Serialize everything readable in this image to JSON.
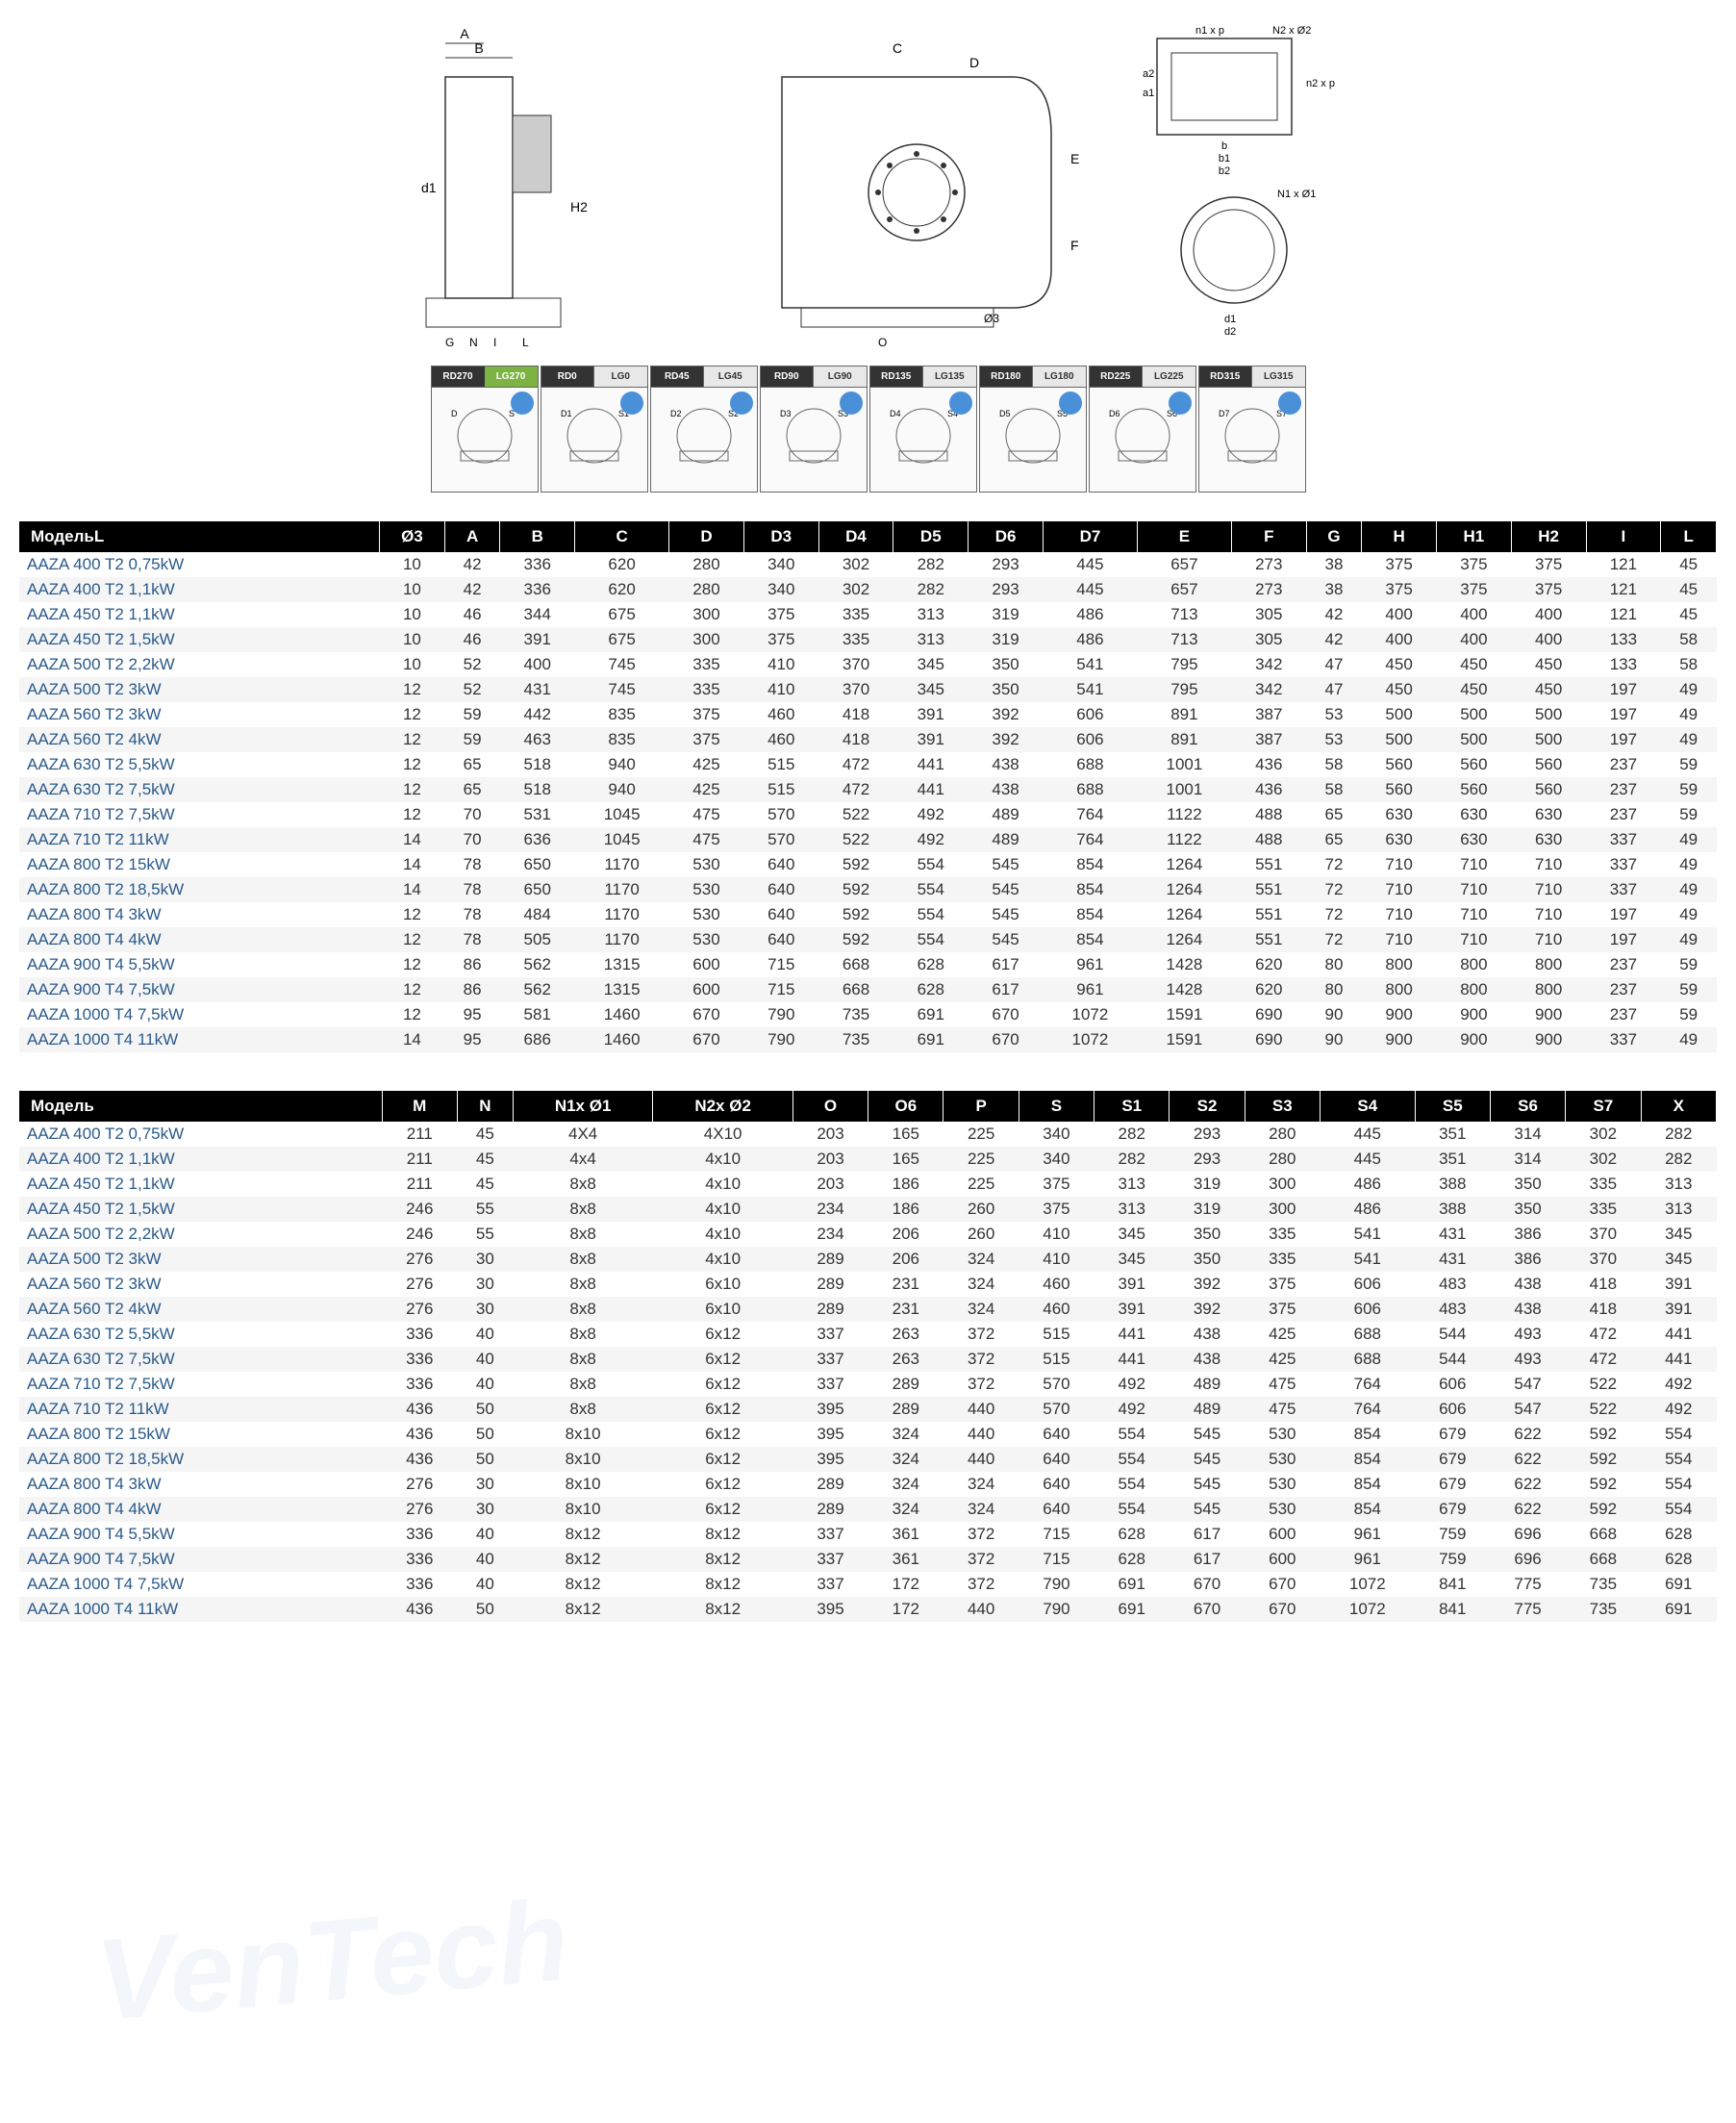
{
  "orientations": [
    {
      "rd": "RD270",
      "lg": "LG270",
      "highlight": true
    },
    {
      "rd": "RD0",
      "lg": "LG0"
    },
    {
      "rd": "RD45",
      "lg": "LG45"
    },
    {
      "rd": "RD90",
      "lg": "LG90"
    },
    {
      "rd": "RD135",
      "lg": "LG135"
    },
    {
      "rd": "RD180",
      "lg": "LG180"
    },
    {
      "rd": "RD225",
      "lg": "LG225"
    },
    {
      "rd": "RD315",
      "lg": "LG315"
    }
  ],
  "table1": {
    "headers": [
      "МодельL",
      "Ø3",
      "A",
      "B",
      "C",
      "D",
      "D3",
      "D4",
      "D5",
      "D6",
      "D7",
      "E",
      "F",
      "G",
      "H",
      "H1",
      "H2",
      "I",
      "L"
    ],
    "rows": [
      [
        "AAZA 400 T2 0,75kW",
        "10",
        "42",
        "336",
        "620",
        "280",
        "340",
        "302",
        "282",
        "293",
        "445",
        "657",
        "273",
        "38",
        "375",
        "375",
        "375",
        "121",
        "45"
      ],
      [
        "AAZA 400 T2 1,1kW",
        "10",
        "42",
        "336",
        "620",
        "280",
        "340",
        "302",
        "282",
        "293",
        "445",
        "657",
        "273",
        "38",
        "375",
        "375",
        "375",
        "121",
        "45"
      ],
      [
        "AAZA 450 T2 1,1kW",
        "10",
        "46",
        "344",
        "675",
        "300",
        "375",
        "335",
        "313",
        "319",
        "486",
        "713",
        "305",
        "42",
        "400",
        "400",
        "400",
        "121",
        "45"
      ],
      [
        "AAZA 450 T2 1,5kW",
        "10",
        "46",
        "391",
        "675",
        "300",
        "375",
        "335",
        "313",
        "319",
        "486",
        "713",
        "305",
        "42",
        "400",
        "400",
        "400",
        "133",
        "58"
      ],
      [
        "AAZA 500 T2 2,2kW",
        "10",
        "52",
        "400",
        "745",
        "335",
        "410",
        "370",
        "345",
        "350",
        "541",
        "795",
        "342",
        "47",
        "450",
        "450",
        "450",
        "133",
        "58"
      ],
      [
        "AAZA 500 T2 3kW",
        "12",
        "52",
        "431",
        "745",
        "335",
        "410",
        "370",
        "345",
        "350",
        "541",
        "795",
        "342",
        "47",
        "450",
        "450",
        "450",
        "197",
        "49"
      ],
      [
        "AAZA 560 T2 3kW",
        "12",
        "59",
        "442",
        "835",
        "375",
        "460",
        "418",
        "391",
        "392",
        "606",
        "891",
        "387",
        "53",
        "500",
        "500",
        "500",
        "197",
        "49"
      ],
      [
        "AAZA 560 T2 4kW",
        "12",
        "59",
        "463",
        "835",
        "375",
        "460",
        "418",
        "391",
        "392",
        "606",
        "891",
        "387",
        "53",
        "500",
        "500",
        "500",
        "197",
        "49"
      ],
      [
        "AAZA 630 T2 5,5kW",
        "12",
        "65",
        "518",
        "940",
        "425",
        "515",
        "472",
        "441",
        "438",
        "688",
        "1001",
        "436",
        "58",
        "560",
        "560",
        "560",
        "237",
        "59"
      ],
      [
        "AAZA 630 T2 7,5kW",
        "12",
        "65",
        "518",
        "940",
        "425",
        "515",
        "472",
        "441",
        "438",
        "688",
        "1001",
        "436",
        "58",
        "560",
        "560",
        "560",
        "237",
        "59"
      ],
      [
        "AAZA 710 T2 7,5kW",
        "12",
        "70",
        "531",
        "1045",
        "475",
        "570",
        "522",
        "492",
        "489",
        "764",
        "1122",
        "488",
        "65",
        "630",
        "630",
        "630",
        "237",
        "59"
      ],
      [
        "AAZA 710 T2 11kW",
        "14",
        "70",
        "636",
        "1045",
        "475",
        "570",
        "522",
        "492",
        "489",
        "764",
        "1122",
        "488",
        "65",
        "630",
        "630",
        "630",
        "337",
        "49"
      ],
      [
        "AAZA 800 T2 15kW",
        "14",
        "78",
        "650",
        "1170",
        "530",
        "640",
        "592",
        "554",
        "545",
        "854",
        "1264",
        "551",
        "72",
        "710",
        "710",
        "710",
        "337",
        "49"
      ],
      [
        "AAZA 800 T2 18,5kW",
        "14",
        "78",
        "650",
        "1170",
        "530",
        "640",
        "592",
        "554",
        "545",
        "854",
        "1264",
        "551",
        "72",
        "710",
        "710",
        "710",
        "337",
        "49"
      ],
      [
        "AAZA 800 T4 3kW",
        "12",
        "78",
        "484",
        "1170",
        "530",
        "640",
        "592",
        "554",
        "545",
        "854",
        "1264",
        "551",
        "72",
        "710",
        "710",
        "710",
        "197",
        "49"
      ],
      [
        "AAZA 800 T4 4kW",
        "12",
        "78",
        "505",
        "1170",
        "530",
        "640",
        "592",
        "554",
        "545",
        "854",
        "1264",
        "551",
        "72",
        "710",
        "710",
        "710",
        "197",
        "49"
      ],
      [
        "AAZA 900 T4 5,5kW",
        "12",
        "86",
        "562",
        "1315",
        "600",
        "715",
        "668",
        "628",
        "617",
        "961",
        "1428",
        "620",
        "80",
        "800",
        "800",
        "800",
        "237",
        "59"
      ],
      [
        "AAZA 900 T4 7,5kW",
        "12",
        "86",
        "562",
        "1315",
        "600",
        "715",
        "668",
        "628",
        "617",
        "961",
        "1428",
        "620",
        "80",
        "800",
        "800",
        "800",
        "237",
        "59"
      ],
      [
        "AAZA 1000 T4 7,5kW",
        "12",
        "95",
        "581",
        "1460",
        "670",
        "790",
        "735",
        "691",
        "670",
        "1072",
        "1591",
        "690",
        "90",
        "900",
        "900",
        "900",
        "237",
        "59"
      ],
      [
        "AAZA 1000 T4 11kW",
        "14",
        "95",
        "686",
        "1460",
        "670",
        "790",
        "735",
        "691",
        "670",
        "1072",
        "1591",
        "690",
        "90",
        "900",
        "900",
        "900",
        "337",
        "49"
      ]
    ]
  },
  "table2": {
    "headers": [
      "Модель",
      "M",
      "N",
      "N1x Ø1",
      "N2x Ø2",
      "O",
      "O6",
      "P",
      "S",
      "S1",
      "S2",
      "S3",
      "S4",
      "S5",
      "S6",
      "S7",
      "X"
    ],
    "rows": [
      [
        "AAZA 400 T2 0,75kW",
        "211",
        "45",
        "4X4",
        "4X10",
        "203",
        "165",
        "225",
        "340",
        "282",
        "293",
        "280",
        "445",
        "351",
        "314",
        "302",
        "282"
      ],
      [
        "AAZA 400 T2 1,1kW",
        "211",
        "45",
        "4x4",
        "4x10",
        "203",
        "165",
        "225",
        "340",
        "282",
        "293",
        "280",
        "445",
        "351",
        "314",
        "302",
        "282"
      ],
      [
        "AAZA 450 T2 1,1kW",
        "211",
        "45",
        "8x8",
        "4x10",
        "203",
        "186",
        "225",
        "375",
        "313",
        "319",
        "300",
        "486",
        "388",
        "350",
        "335",
        "313"
      ],
      [
        "AAZA 450 T2 1,5kW",
        "246",
        "55",
        "8x8",
        "4x10",
        "234",
        "186",
        "260",
        "375",
        "313",
        "319",
        "300",
        "486",
        "388",
        "350",
        "335",
        "313"
      ],
      [
        "AAZA 500 T2 2,2kW",
        "246",
        "55",
        "8x8",
        "4x10",
        "234",
        "206",
        "260",
        "410",
        "345",
        "350",
        "335",
        "541",
        "431",
        "386",
        "370",
        "345"
      ],
      [
        "AAZA 500 T2 3kW",
        "276",
        "30",
        "8x8",
        "4x10",
        "289",
        "206",
        "324",
        "410",
        "345",
        "350",
        "335",
        "541",
        "431",
        "386",
        "370",
        "345"
      ],
      [
        "AAZA 560 T2 3kW",
        "276",
        "30",
        "8x8",
        "6x10",
        "289",
        "231",
        "324",
        "460",
        "391",
        "392",
        "375",
        "606",
        "483",
        "438",
        "418",
        "391"
      ],
      [
        "AAZA 560 T2 4kW",
        "276",
        "30",
        "8x8",
        "6x10",
        "289",
        "231",
        "324",
        "460",
        "391",
        "392",
        "375",
        "606",
        "483",
        "438",
        "418",
        "391"
      ],
      [
        "AAZA 630 T2 5,5kW",
        "336",
        "40",
        "8x8",
        "6x12",
        "337",
        "263",
        "372",
        "515",
        "441",
        "438",
        "425",
        "688",
        "544",
        "493",
        "472",
        "441"
      ],
      [
        "AAZA 630 T2 7,5kW",
        "336",
        "40",
        "8x8",
        "6x12",
        "337",
        "263",
        "372",
        "515",
        "441",
        "438",
        "425",
        "688",
        "544",
        "493",
        "472",
        "441"
      ],
      [
        "AAZA 710 T2 7,5kW",
        "336",
        "40",
        "8x8",
        "6x12",
        "337",
        "289",
        "372",
        "570",
        "492",
        "489",
        "475",
        "764",
        "606",
        "547",
        "522",
        "492"
      ],
      [
        "AAZA 710 T2 11kW",
        "436",
        "50",
        "8x8",
        "6x12",
        "395",
        "289",
        "440",
        "570",
        "492",
        "489",
        "475",
        "764",
        "606",
        "547",
        "522",
        "492"
      ],
      [
        "AAZA 800 T2 15kW",
        "436",
        "50",
        "8x10",
        "6x12",
        "395",
        "324",
        "440",
        "640",
        "554",
        "545",
        "530",
        "854",
        "679",
        "622",
        "592",
        "554"
      ],
      [
        "AAZA 800 T2 18,5kW",
        "436",
        "50",
        "8x10",
        "6x12",
        "395",
        "324",
        "440",
        "640",
        "554",
        "545",
        "530",
        "854",
        "679",
        "622",
        "592",
        "554"
      ],
      [
        "AAZA 800 T4 3kW",
        "276",
        "30",
        "8x10",
        "6x12",
        "289",
        "324",
        "324",
        "640",
        "554",
        "545",
        "530",
        "854",
        "679",
        "622",
        "592",
        "554"
      ],
      [
        "AAZA 800 T4 4kW",
        "276",
        "30",
        "8x10",
        "6x12",
        "289",
        "324",
        "324",
        "640",
        "554",
        "545",
        "530",
        "854",
        "679",
        "622",
        "592",
        "554"
      ],
      [
        "AAZA 900 T4 5,5kW",
        "336",
        "40",
        "8x12",
        "8x12",
        "337",
        "361",
        "372",
        "715",
        "628",
        "617",
        "600",
        "961",
        "759",
        "696",
        "668",
        "628"
      ],
      [
        "AAZA 900 T4 7,5kW",
        "336",
        "40",
        "8x12",
        "8x12",
        "337",
        "361",
        "372",
        "715",
        "628",
        "617",
        "600",
        "961",
        "759",
        "696",
        "668",
        "628"
      ],
      [
        "AAZA 1000 T4 7,5kW",
        "336",
        "40",
        "8x12",
        "8x12",
        "337",
        "172",
        "372",
        "790",
        "691",
        "670",
        "670",
        "1072",
        "841",
        "775",
        "735",
        "691"
      ],
      [
        "AAZA 1000 T4 11kW",
        "436",
        "50",
        "8x12",
        "8x12",
        "395",
        "172",
        "440",
        "790",
        "691",
        "670",
        "670",
        "1072",
        "841",
        "775",
        "735",
        "691"
      ]
    ]
  },
  "colors": {
    "header_bg": "#000000",
    "header_text": "#ffffff",
    "model_text": "#2a5a8a",
    "cell_text": "#333333",
    "row_alt": "#f5f5f5",
    "orient_blue": "#4a90d9",
    "orient_green": "#7cb342"
  }
}
